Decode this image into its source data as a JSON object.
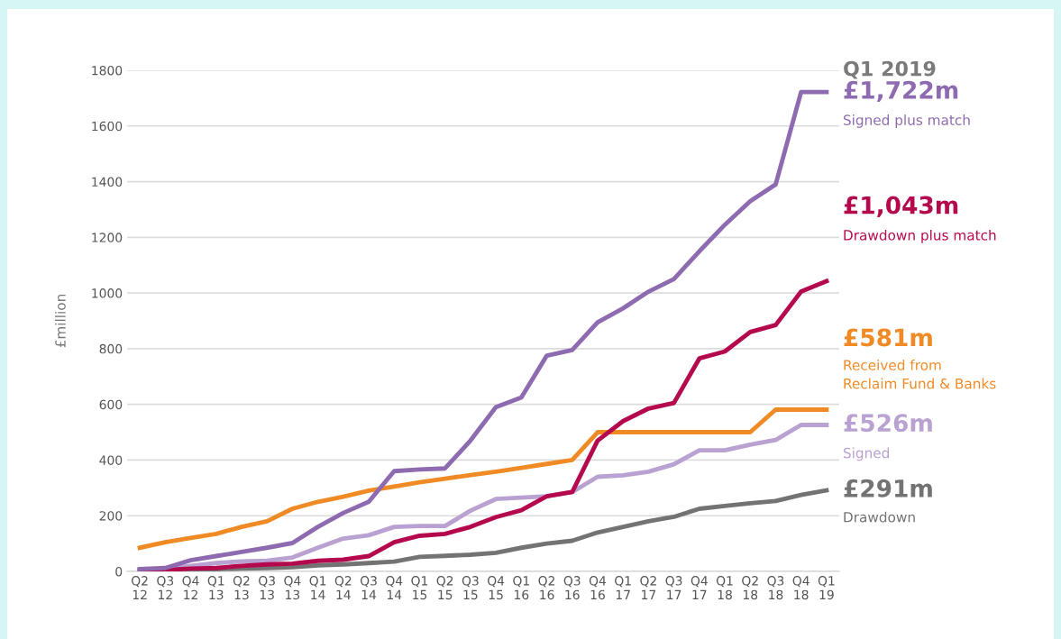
{
  "chart_data": {
    "type": "line",
    "ylabel": "£million",
    "categories": [
      "Q2\n12",
      "Q3\n12",
      "Q4\n12",
      "Q1\n13",
      "Q2\n13",
      "Q3\n13",
      "Q4\n13",
      "Q1\n14",
      "Q2\n14",
      "Q3\n14",
      "Q4\n14",
      "Q1\n15",
      "Q2\n15",
      "Q3\n15",
      "Q4\n15",
      "Q1\n16",
      "Q2\n16",
      "Q3\n16",
      "Q4\n16",
      "Q1\n17",
      "Q2\n17",
      "Q3\n17",
      "Q4\n17",
      "Q1\n18",
      "Q2\n18",
      "Q3\n18",
      "Q4\n18",
      "Q1\n19"
    ],
    "ylim": [
      0,
      1800
    ],
    "yticks": [
      0,
      200,
      400,
      600,
      800,
      1000,
      1200,
      1400,
      1600,
      1800
    ],
    "grid": "y",
    "legend": false,
    "marker": "none",
    "line_style": "solid",
    "annotations": [
      "Q1 2019"
    ],
    "series": [
      {
        "name": "Signed plus match",
        "color": "#8e6bb0",
        "values": [
          8,
          12,
          40,
          55,
          70,
          85,
          102,
          160,
          210,
          250,
          360,
          366,
          370,
          470,
          590,
          625,
          775,
          795,
          895,
          945,
          1005,
          1050,
          1150,
          1245,
          1330,
          1390,
          1722,
          1722
        ],
        "value_labels": [
          null,
          null,
          null,
          null,
          null,
          null,
          null,
          null,
          null,
          null,
          null,
          null,
          null,
          null,
          null,
          null,
          null,
          null,
          null,
          null,
          null,
          null,
          null,
          null,
          null,
          null,
          null,
          "£1,722m"
        ]
      },
      {
        "name": "Drawdown plus match",
        "color": "#b5094e",
        "values": [
          5,
          5,
          10,
          12,
          20,
          25,
          28,
          38,
          42,
          55,
          105,
          128,
          135,
          160,
          195,
          220,
          270,
          285,
          470,
          540,
          585,
          605,
          765,
          790,
          860,
          885,
          1005,
          1043
        ],
        "value_labels": [
          null,
          null,
          null,
          null,
          null,
          null,
          null,
          null,
          null,
          null,
          null,
          null,
          null,
          null,
          null,
          null,
          null,
          null,
          null,
          null,
          null,
          null,
          null,
          null,
          null,
          null,
          null,
          "£1,043m"
        ]
      },
      {
        "name": "Received from\nReclaim Fund & Banks",
        "color": "#f08a24",
        "values": [
          85,
          105,
          120,
          135,
          160,
          180,
          225,
          250,
          268,
          290,
          305,
          320,
          333,
          346,
          358,
          372,
          386,
          400,
          500,
          500,
          500,
          500,
          500,
          500,
          500,
          581,
          581,
          581
        ],
        "value_labels": [
          null,
          null,
          null,
          null,
          null,
          null,
          null,
          null,
          null,
          null,
          null,
          null,
          null,
          null,
          null,
          null,
          null,
          null,
          null,
          null,
          null,
          null,
          null,
          null,
          null,
          null,
          null,
          "£581m"
        ]
      },
      {
        "name": "Signed",
        "color": "#b9a1d2",
        "values": [
          5,
          8,
          20,
          30,
          36,
          38,
          50,
          85,
          118,
          130,
          160,
          163,
          163,
          218,
          260,
          265,
          270,
          285,
          340,
          345,
          358,
          385,
          435,
          435,
          455,
          472,
          526,
          526
        ],
        "value_labels": [
          null,
          null,
          null,
          null,
          null,
          null,
          null,
          null,
          null,
          null,
          null,
          null,
          null,
          null,
          null,
          null,
          null,
          null,
          null,
          null,
          null,
          null,
          null,
          null,
          null,
          null,
          null,
          "£526m"
        ]
      },
      {
        "name": "Drawdown",
        "color": "#737373",
        "values": [
          3,
          3,
          5,
          8,
          10,
          12,
          15,
          22,
          25,
          30,
          35,
          52,
          56,
          60,
          67,
          85,
          100,
          110,
          140,
          160,
          180,
          196,
          225,
          235,
          245,
          253,
          275,
          291
        ],
        "value_labels": [
          null,
          null,
          null,
          null,
          null,
          null,
          null,
          null,
          null,
          null,
          null,
          null,
          null,
          null,
          null,
          null,
          null,
          null,
          null,
          null,
          null,
          null,
          null,
          null,
          null,
          null,
          null,
          "£291m"
        ]
      }
    ]
  }
}
